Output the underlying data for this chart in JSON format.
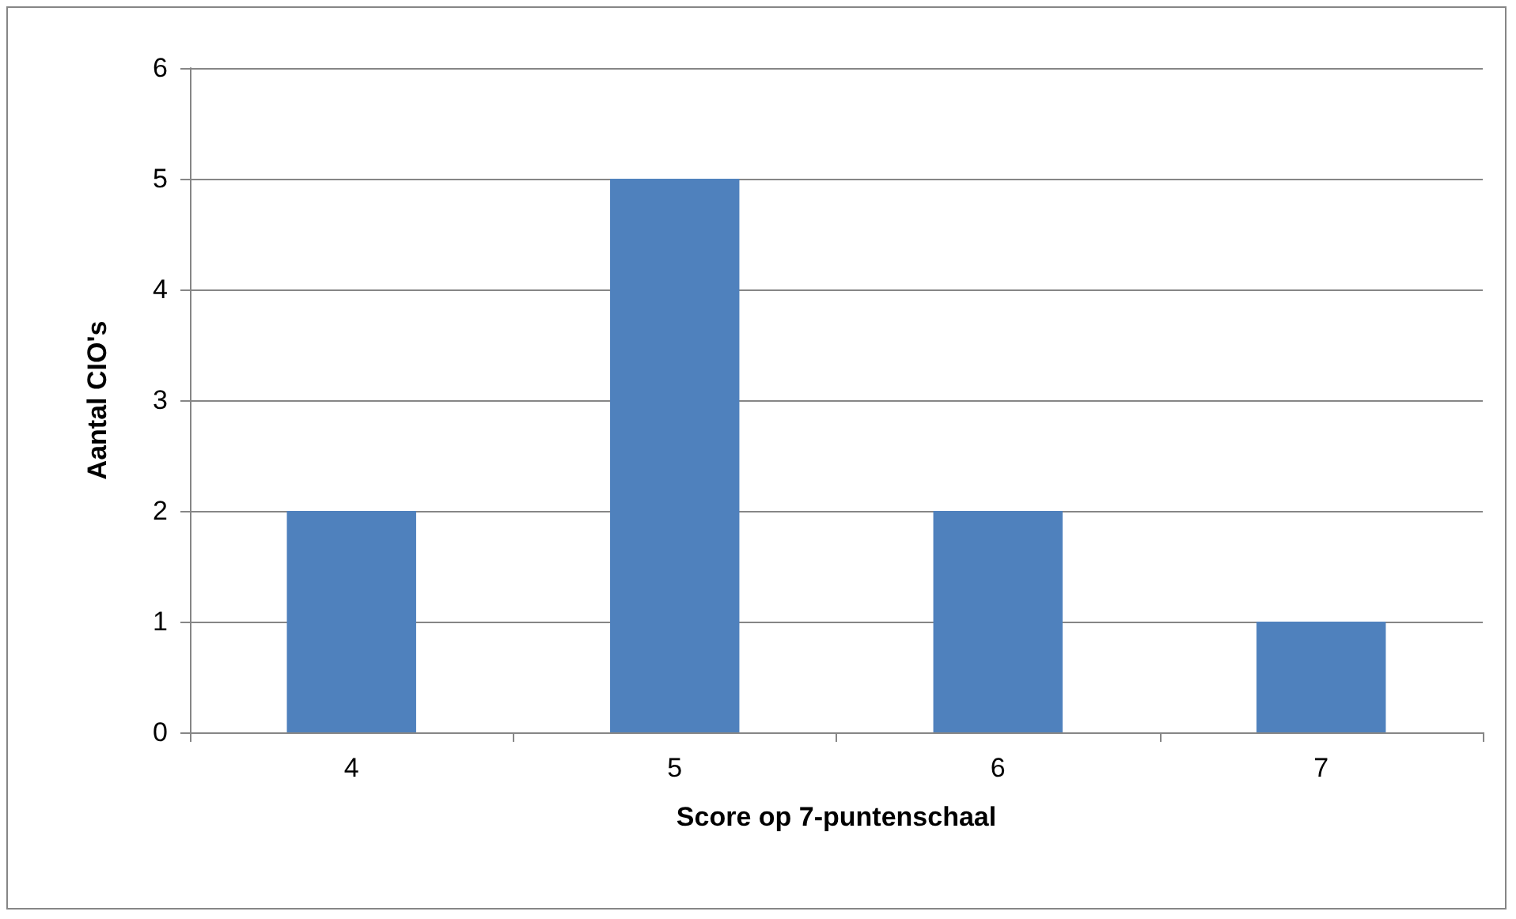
{
  "chart_data": {
    "type": "bar",
    "xlabel": "Score op 7-puntenschaal",
    "ylabel": "Aantal CIO's",
    "categories": [
      "4",
      "5",
      "6",
      "7"
    ],
    "values": [
      2,
      5,
      2,
      1
    ],
    "color": "#4f81bd",
    "ylim": [
      0,
      6
    ],
    "yticks": [
      0,
      1,
      2,
      3,
      4,
      5,
      6
    ],
    "grid": "y"
  }
}
